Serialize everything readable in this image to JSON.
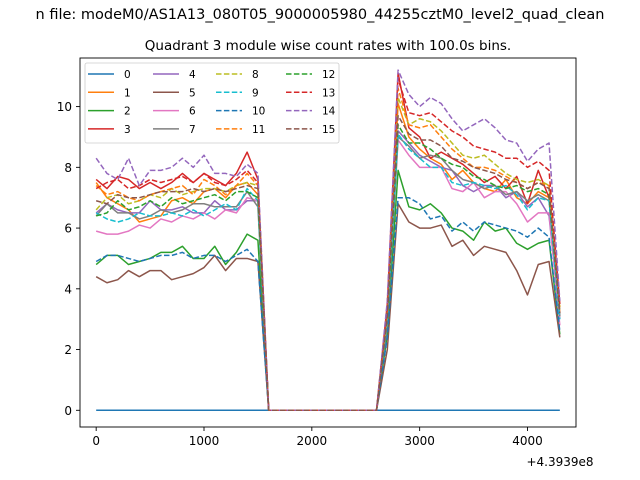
{
  "chart_data": {
    "type": "line",
    "suptitle": "n file: modeM0/AS1A13_080T05_9000005980_44255cztM0_level2_quad_clean",
    "title": "Quadrant 3 module wise count rates with 100.0s bins.",
    "xlabel": "",
    "ylabel": "",
    "x_offset_label": "+4.3939e8",
    "xlim": [
      -150,
      4450
    ],
    "ylim": [
      -0.55,
      11.6
    ],
    "x_ticks": [
      0,
      1000,
      2000,
      3000,
      4000
    ],
    "y_ticks": [
      0,
      2,
      4,
      6,
      8,
      10
    ],
    "x": [
      0,
      100,
      200,
      300,
      400,
      500,
      600,
      700,
      800,
      900,
      1000,
      1100,
      1200,
      1300,
      1400,
      1500,
      1600,
      1700,
      1800,
      1900,
      2000,
      2100,
      2200,
      2300,
      2400,
      2500,
      2600,
      2700,
      2800,
      2900,
      3000,
      3100,
      3200,
      3300,
      3400,
      3500,
      3600,
      3700,
      3800,
      3900,
      4000,
      4100,
      4200,
      4300
    ],
    "legend_location": "upper left",
    "legend_columns": 4,
    "series": [
      {
        "name": "0",
        "color": "#1f77b4",
        "dash": "solid",
        "values": [
          0,
          0,
          0,
          0,
          0,
          0,
          0,
          0,
          0,
          0,
          0,
          0,
          0,
          0,
          0,
          0,
          0,
          0,
          0,
          0,
          0,
          0,
          0,
          0,
          0,
          0,
          0,
          0,
          0,
          0,
          0,
          0,
          0,
          0,
          0,
          0,
          0,
          0,
          0,
          0,
          0,
          0,
          0,
          0
        ]
      },
      {
        "name": "1",
        "color": "#ff7f0e",
        "dash": "solid",
        "values": [
          7.5,
          7.0,
          6.8,
          6.6,
          6.2,
          6.3,
          6.4,
          6.9,
          7.0,
          6.8,
          7.2,
          7.3,
          7.0,
          7.4,
          7.5,
          7.1,
          0,
          0,
          0,
          0,
          0,
          0,
          0,
          0,
          0,
          0,
          0,
          3.0,
          10.1,
          9.0,
          8.6,
          8.3,
          8.1,
          7.6,
          7.9,
          7.5,
          7.3,
          7.2,
          7.6,
          7.0,
          6.8,
          7.2,
          7.0,
          3.2
        ]
      },
      {
        "name": "2",
        "color": "#2ca02c",
        "dash": "solid",
        "values": [
          4.8,
          5.1,
          5.1,
          4.8,
          4.9,
          5.0,
          5.2,
          5.2,
          5.4,
          5.0,
          5.0,
          5.4,
          4.8,
          5.2,
          5.8,
          5.6,
          0,
          0,
          0,
          0,
          0,
          0,
          0,
          0,
          0,
          0,
          0,
          2.5,
          7.9,
          6.7,
          6.6,
          6.8,
          6.5,
          6.0,
          5.9,
          5.6,
          6.2,
          5.9,
          6.0,
          5.5,
          5.3,
          5.5,
          5.6,
          2.5
        ]
      },
      {
        "name": "3",
        "color": "#d62728",
        "dash": "solid",
        "values": [
          7.6,
          7.3,
          7.7,
          7.6,
          7.3,
          7.5,
          7.3,
          7.5,
          7.8,
          7.5,
          7.8,
          7.6,
          7.4,
          7.8,
          8.5,
          7.6,
          0,
          0,
          0,
          0,
          0,
          0,
          0,
          0,
          0,
          0,
          0,
          3.5,
          11.1,
          9.3,
          9.0,
          8.3,
          8.5,
          8.3,
          8.1,
          7.8,
          7.5,
          7.7,
          7.3,
          7.7,
          6.8,
          7.9,
          7.0,
          3.1
        ]
      },
      {
        "name": "4",
        "color": "#9467bd",
        "dash": "solid",
        "values": [
          6.5,
          6.8,
          6.6,
          6.5,
          6.5,
          6.9,
          6.6,
          6.6,
          6.7,
          6.5,
          6.5,
          6.9,
          6.6,
          6.6,
          6.9,
          6.9,
          0,
          0,
          0,
          0,
          0,
          0,
          0,
          0,
          0,
          0,
          0,
          3.0,
          9.2,
          8.8,
          8.4,
          8.2,
          8.0,
          7.9,
          7.4,
          7.2,
          7.4,
          7.4,
          7.0,
          7.2,
          6.7,
          7.0,
          6.4,
          3.0
        ]
      },
      {
        "name": "5",
        "color": "#8c564b",
        "dash": "solid",
        "values": [
          4.4,
          4.2,
          4.3,
          4.6,
          4.4,
          4.6,
          4.6,
          4.3,
          4.4,
          4.5,
          4.7,
          5.1,
          4.6,
          5.0,
          5.0,
          4.9,
          0,
          0,
          0,
          0,
          0,
          0,
          0,
          0,
          0,
          0,
          0,
          2.0,
          6.8,
          6.2,
          6.0,
          6.0,
          6.1,
          5.4,
          5.6,
          5.1,
          5.4,
          5.3,
          5.2,
          4.6,
          3.8,
          4.8,
          4.9,
          2.4
        ]
      },
      {
        "name": "6",
        "color": "#e377c2",
        "dash": "solid",
        "values": [
          5.9,
          5.8,
          5.8,
          5.9,
          6.1,
          6.0,
          6.3,
          6.2,
          6.4,
          6.3,
          6.5,
          6.3,
          6.6,
          6.5,
          7.0,
          6.9,
          0,
          0,
          0,
          0,
          0,
          0,
          0,
          0,
          0,
          0,
          0,
          3.0,
          8.9,
          8.4,
          8.0,
          8.0,
          8.0,
          7.3,
          7.2,
          7.5,
          7.0,
          7.2,
          7.2,
          6.8,
          6.2,
          6.5,
          6.5,
          2.8
        ]
      },
      {
        "name": "7",
        "color": "#7f7f7f",
        "dash": "solid",
        "values": [
          6.4,
          6.8,
          6.5,
          6.5,
          6.3,
          6.4,
          6.6,
          6.5,
          6.6,
          6.8,
          6.8,
          6.7,
          6.7,
          6.7,
          7.2,
          6.7,
          0,
          0,
          0,
          0,
          0,
          0,
          0,
          0,
          0,
          0,
          0,
          2.8,
          9.0,
          8.7,
          8.3,
          8.4,
          8.3,
          7.9,
          7.6,
          7.5,
          7.3,
          7.4,
          7.1,
          7.2,
          6.9,
          7.1,
          6.9,
          3.1
        ]
      },
      {
        "name": "8",
        "color": "#bcbd22",
        "dash": "dashed",
        "values": [
          6.6,
          7.0,
          7.1,
          6.8,
          6.9,
          7.1,
          7.0,
          7.3,
          7.1,
          7.2,
          7.3,
          7.3,
          7.2,
          7.4,
          7.5,
          7.4,
          0,
          0,
          0,
          0,
          0,
          0,
          0,
          0,
          0,
          0,
          0,
          3.2,
          10.3,
          9.4,
          9.6,
          9.5,
          9.2,
          8.8,
          8.4,
          8.3,
          8.4,
          8.1,
          7.8,
          7.6,
          7.5,
          7.6,
          7.4,
          3.4
        ]
      },
      {
        "name": "9",
        "color": "#17becf",
        "dash": "dashed",
        "values": [
          6.5,
          6.3,
          6.2,
          6.3,
          6.5,
          6.4,
          6.4,
          6.5,
          6.4,
          6.6,
          6.4,
          6.6,
          6.8,
          6.6,
          7.3,
          6.9,
          0,
          0,
          0,
          0,
          0,
          0,
          0,
          0,
          0,
          0,
          0,
          3.0,
          9.1,
          8.6,
          8.3,
          8.0,
          8.0,
          7.5,
          7.4,
          7.5,
          7.4,
          7.3,
          7.4,
          7.1,
          6.6,
          7.0,
          6.9,
          3.0
        ]
      },
      {
        "name": "10",
        "color": "#1f77b4",
        "dash": "dashed",
        "values": [
          4.9,
          5.1,
          5.1,
          5.0,
          4.9,
          5.0,
          5.1,
          5.1,
          5.2,
          5.0,
          5.1,
          5.1,
          4.9,
          5.1,
          5.3,
          4.9,
          0,
          0,
          0,
          0,
          0,
          0,
          0,
          0,
          0,
          0,
          0,
          2.4,
          7.0,
          7.0,
          6.8,
          6.3,
          6.4,
          5.9,
          6.2,
          5.9,
          6.2,
          6.1,
          6.0,
          5.9,
          5.7,
          6.0,
          5.7,
          2.6
        ]
      },
      {
        "name": "11",
        "color": "#ff7f0e",
        "dash": "dashed",
        "values": [
          7.4,
          7.1,
          7.2,
          7.0,
          6.9,
          7.1,
          7.2,
          7.3,
          7.4,
          7.1,
          7.6,
          7.4,
          7.1,
          7.4,
          7.8,
          7.4,
          0,
          0,
          0,
          0,
          0,
          0,
          0,
          0,
          0,
          0,
          0,
          3.2,
          10.6,
          9.4,
          9.3,
          9.4,
          9.0,
          8.6,
          8.3,
          8.0,
          8.0,
          7.9,
          7.7,
          7.5,
          7.3,
          7.5,
          7.4,
          3.3
        ]
      },
      {
        "name": "12",
        "color": "#2ca02c",
        "dash": "dashed",
        "values": [
          6.4,
          6.5,
          6.9,
          6.6,
          6.7,
          6.9,
          6.7,
          7.0,
          6.8,
          6.9,
          7.0,
          7.1,
          6.9,
          7.2,
          7.2,
          7.0,
          0,
          0,
          0,
          0,
          0,
          0,
          0,
          0,
          0,
          0,
          0,
          3.1,
          9.4,
          8.8,
          8.8,
          8.6,
          8.3,
          8.1,
          8.0,
          7.7,
          7.6,
          7.4,
          7.3,
          7.4,
          7.2,
          7.3,
          7.1,
          3.2
        ]
      },
      {
        "name": "13",
        "color": "#d62728",
        "dash": "dashed",
        "values": [
          7.3,
          7.5,
          7.6,
          7.3,
          7.4,
          7.6,
          7.5,
          7.6,
          7.7,
          7.5,
          7.8,
          7.5,
          7.4,
          7.6,
          7.9,
          7.5,
          0,
          0,
          0,
          0,
          0,
          0,
          0,
          0,
          0,
          0,
          0,
          3.4,
          10.9,
          9.8,
          9.7,
          9.8,
          9.5,
          9.2,
          9.0,
          8.7,
          8.6,
          8.5,
          8.3,
          8.3,
          8.0,
          8.2,
          7.9,
          3.5
        ]
      },
      {
        "name": "14",
        "color": "#9467bd",
        "dash": "dashed",
        "values": [
          8.3,
          7.8,
          7.6,
          8.3,
          7.4,
          7.9,
          7.9,
          8.0,
          8.3,
          8.0,
          8.4,
          7.8,
          7.8,
          7.7,
          8.1,
          7.8,
          0,
          0,
          0,
          0,
          0,
          0,
          0,
          0,
          0,
          0,
          0,
          3.6,
          11.2,
          10.4,
          10.0,
          10.3,
          10.1,
          9.6,
          9.2,
          9.4,
          9.6,
          9.3,
          8.9,
          8.8,
          8.2,
          8.6,
          8.8,
          3.6
        ]
      },
      {
        "name": "15",
        "color": "#8c564b",
        "dash": "dashed",
        "values": [
          6.9,
          6.8,
          7.1,
          7.0,
          7.0,
          7.1,
          7.2,
          7.2,
          7.2,
          7.3,
          7.2,
          7.3,
          7.2,
          7.3,
          7.4,
          7.3,
          0,
          0,
          0,
          0,
          0,
          0,
          0,
          0,
          0,
          0,
          0,
          3.1,
          9.7,
          9.1,
          8.9,
          8.9,
          8.7,
          8.3,
          8.2,
          8.0,
          7.9,
          7.8,
          7.6,
          7.5,
          7.3,
          7.5,
          7.3,
          3.2
        ]
      }
    ]
  }
}
